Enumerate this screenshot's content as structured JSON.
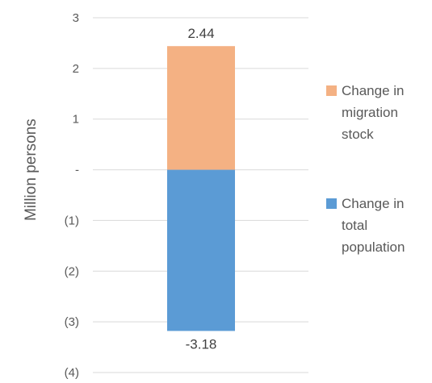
{
  "chart_data": {
    "type": "bar",
    "stacked": true,
    "categories": [
      ""
    ],
    "ylabel": "Million persons",
    "ylim": [
      -4,
      3
    ],
    "y_ticks": [
      {
        "value": 3,
        "label": "3"
      },
      {
        "value": 2,
        "label": "2"
      },
      {
        "value": 1,
        "label": "1"
      },
      {
        "value": 0,
        "label": "-"
      },
      {
        "value": -1,
        "label": "(1)"
      },
      {
        "value": -2,
        "label": "(2)"
      },
      {
        "value": -3,
        "label": "(3)"
      },
      {
        "value": -4,
        "label": "(4)"
      }
    ],
    "grid": true,
    "legend_position": "right",
    "series": [
      {
        "name": "Change in migration stock",
        "legend_lines": [
          "Change in",
          "migration",
          "stock"
        ],
        "values": [
          2.44
        ],
        "data_label": "2.44",
        "color": "#F4B183"
      },
      {
        "name": "Change in total population",
        "legend_lines": [
          "Change in",
          "total",
          "population"
        ],
        "values": [
          -3.18
        ],
        "data_label": "-3.18",
        "color": "#5B9BD5"
      }
    ]
  }
}
